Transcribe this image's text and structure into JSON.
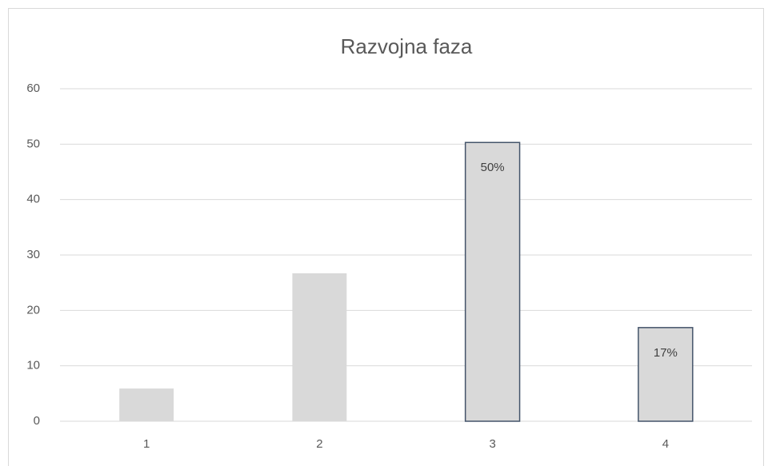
{
  "chart_data": {
    "type": "bar",
    "title": "Razvojna faza",
    "categories": [
      "1",
      "2",
      "3",
      "4"
    ],
    "values": [
      5.9,
      26.7,
      50.3,
      16.9
    ],
    "value_labels": [
      null,
      null,
      "50%",
      "17%"
    ],
    "color": "#d9d9d9",
    "border_colors": [
      null,
      null,
      "#44546a",
      "#44546a"
    ],
    "ylim": [
      0,
      60
    ],
    "yticks": [
      0,
      10,
      20,
      30,
      40,
      50,
      60
    ],
    "grid": true
  }
}
